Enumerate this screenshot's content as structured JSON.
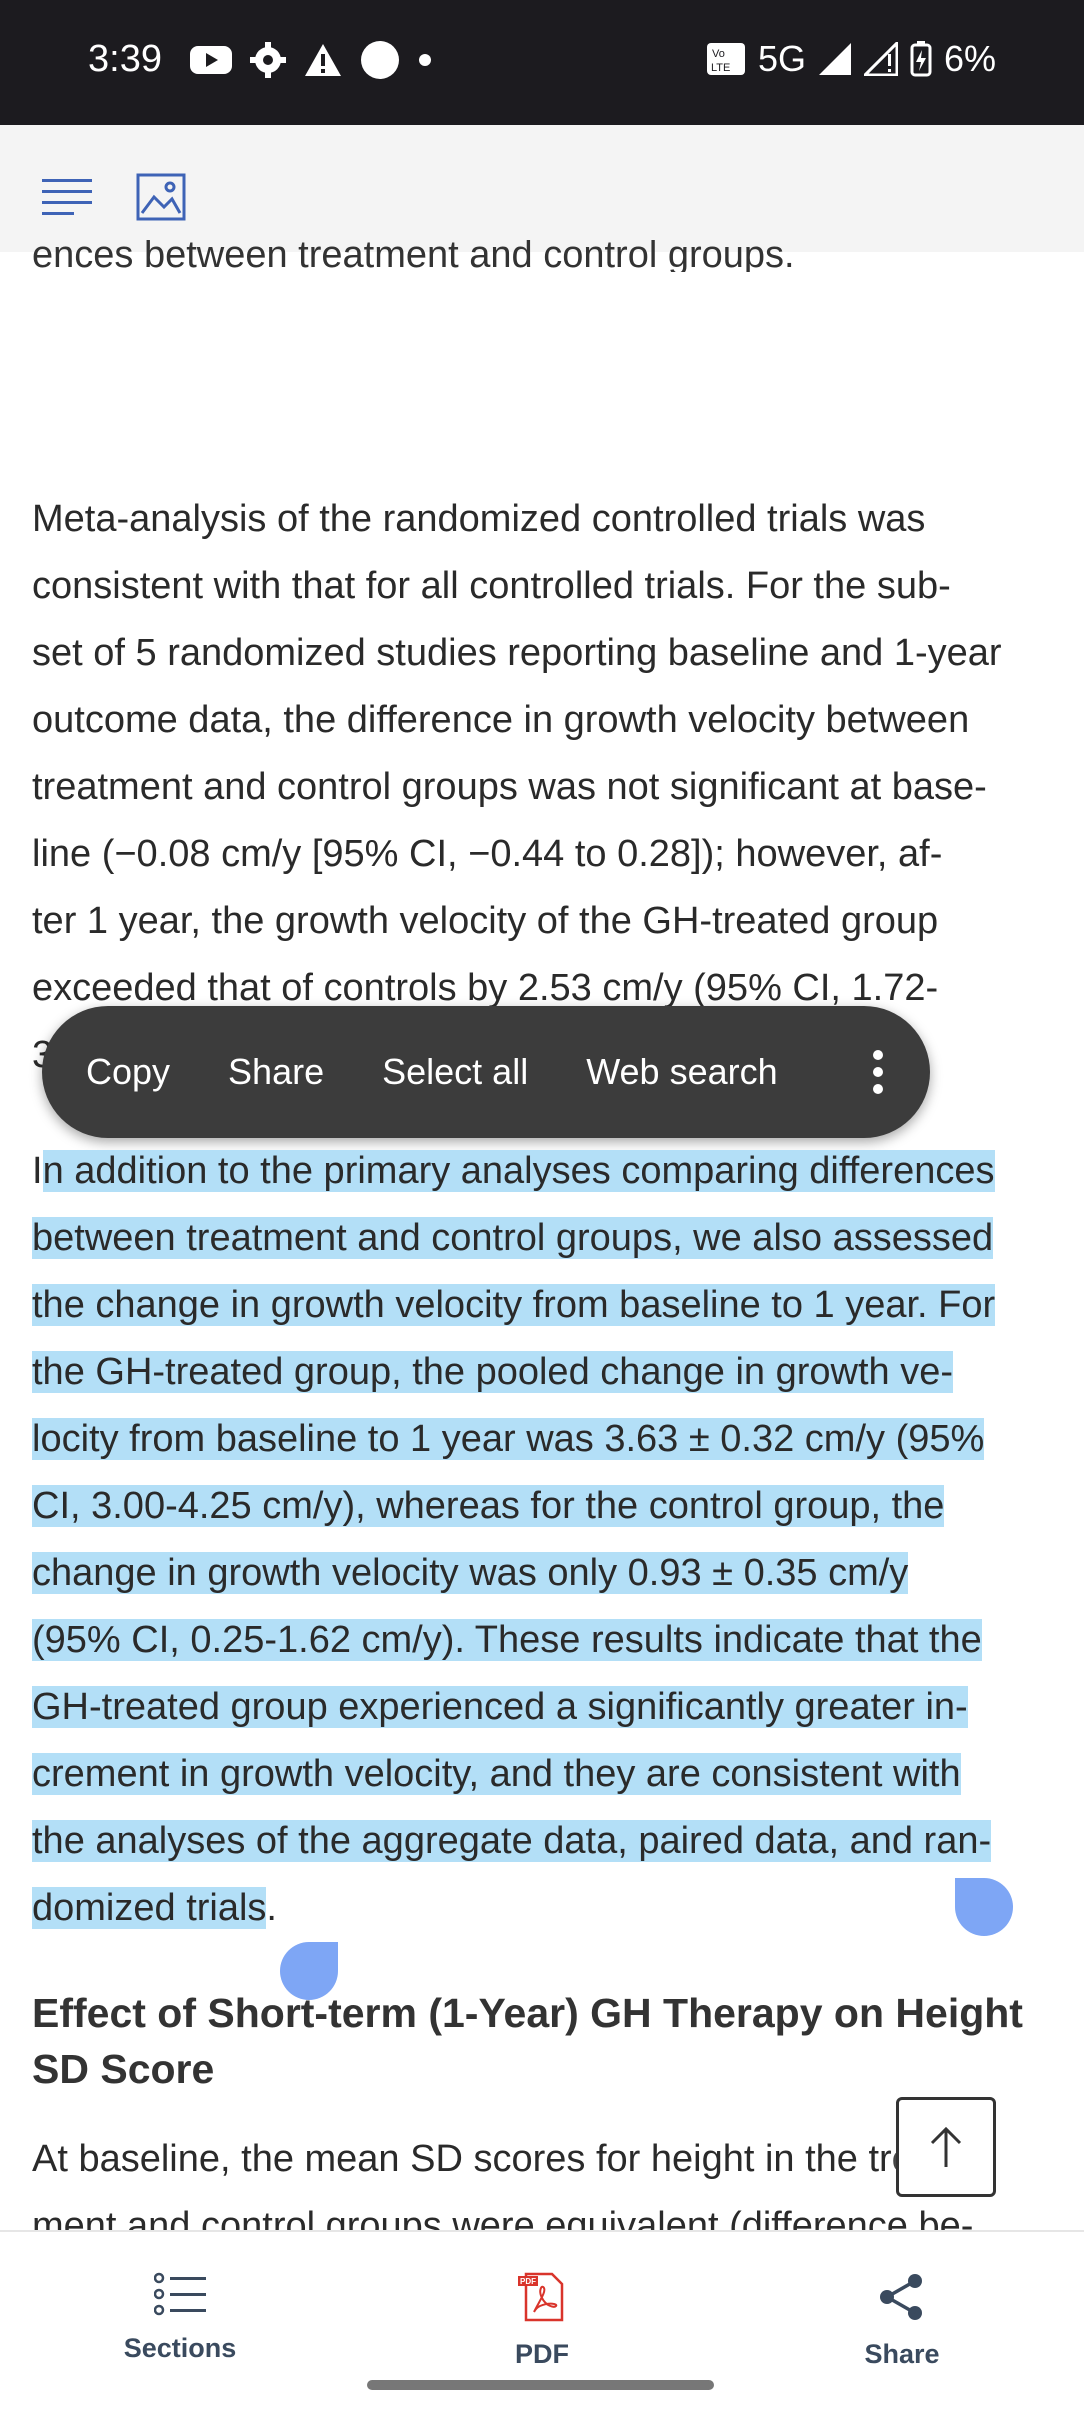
{
  "status_bar": {
    "time": "3:39",
    "network": "5G",
    "battery": "6%",
    "volte": "Vo LTE"
  },
  "clipped_text": "ences between treatment and control groups.",
  "paragraph1_lines": [
    "Meta-analysis of the randomized controlled trials was",
    "consistent with that for all controlled trials. For the sub-",
    "set of 5 randomized studies reporting baseline and 1-year",
    "outcome data, the difference in growth velocity between",
    "treatment and control groups was not significant at base-",
    "line (−0.08 cm/y [95% CI, −0.44 to 0.28]); however, af-",
    "ter 1 year, the growth velocity of the GH-treated group",
    "exceeded that of controls by 2.53 cm/y (95% CI, 1.72-",
    "3"
  ],
  "context_menu": {
    "copy": "Copy",
    "share": "Share",
    "select_all": "Select all",
    "web_search": "Web search"
  },
  "paragraph2_lines": [
    {
      "pre": "I",
      "sel": "n addition to the primary analyses comparing differences",
      "post": ""
    },
    {
      "pre": "",
      "sel": "between treatment and control groups, we also assessed",
      "post": ""
    },
    {
      "pre": "",
      "sel": "the change in growth velocity from baseline to 1 year. For",
      "post": ""
    },
    {
      "pre": "",
      "sel": "the GH-treated group, the pooled change in growth ve-",
      "post": ""
    },
    {
      "pre": "",
      "sel": "locity from baseline to 1 year was 3.63 ± 0.32 cm/y (95%",
      "post": ""
    },
    {
      "pre": "",
      "sel": "CI, 3.00-4.25 cm/y), whereas for the control group, the",
      "post": ""
    },
    {
      "pre": "",
      "sel": "change in growth velocity was only 0.93 ± 0.35 cm/y",
      "post": ""
    },
    {
      "pre": "",
      "sel": "(95% CI, 0.25-1.62 cm/y). These results indicate that the",
      "post": ""
    },
    {
      "pre": "",
      "sel": "GH-treated group experienced a significantly greater in-",
      "post": ""
    },
    {
      "pre": "",
      "sel": "crement in growth velocity, and they are consistent with",
      "post": ""
    },
    {
      "pre": "",
      "sel": "the analyses of the aggregate data, paired data, and ran-",
      "post": ""
    },
    {
      "pre": "",
      "sel": "domized trials",
      "post": "."
    }
  ],
  "section_heading": "Effect of Short-term (1-Year) GH Therapy on Height SD Score",
  "paragraph3_lines": [
    "At baseline, the mean SD scores for height in the treat-",
    "ment and control groups were equivalent (difference be-"
  ],
  "bottom_nav": {
    "sections": "Sections",
    "pdf": "PDF",
    "share": "Share"
  },
  "colors": {
    "selection": "#b3dff7",
    "handle": "#7ea6f5",
    "menu_bg": "#3c3c3c",
    "pdf_red": "#d9342b"
  }
}
